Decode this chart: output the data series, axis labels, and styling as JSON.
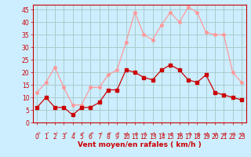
{
  "hours": [
    0,
    1,
    2,
    3,
    4,
    5,
    6,
    7,
    8,
    9,
    10,
    11,
    12,
    13,
    14,
    15,
    16,
    17,
    18,
    19,
    20,
    21,
    22,
    23
  ],
  "wind_avg": [
    6,
    10,
    6,
    6,
    3,
    6,
    6,
    8,
    13,
    13,
    21,
    20,
    18,
    17,
    21,
    23,
    21,
    17,
    16,
    19,
    12,
    11,
    10,
    9
  ],
  "wind_gust": [
    12,
    16,
    22,
    14,
    7,
    7,
    14,
    14,
    19,
    21,
    32,
    44,
    35,
    33,
    39,
    44,
    40,
    46,
    44,
    36,
    35,
    35,
    20,
    16
  ],
  "avg_color": "#cc0000",
  "gust_color": "#ff9999",
  "bg_color": "#cceeff",
  "grid_color": "#aacccc",
  "xlabel": "Vent moyen/en rafales ( km/h )",
  "ylabel_ticks": [
    0,
    5,
    10,
    15,
    20,
    25,
    30,
    35,
    40,
    45
  ],
  "ylim": [
    0,
    47
  ],
  "xlim": [
    -0.5,
    23.5
  ],
  "xlabel_fontsize": 6.5,
  "tick_fontsize": 5.5,
  "marker_size": 2.5,
  "line_width": 0.9
}
